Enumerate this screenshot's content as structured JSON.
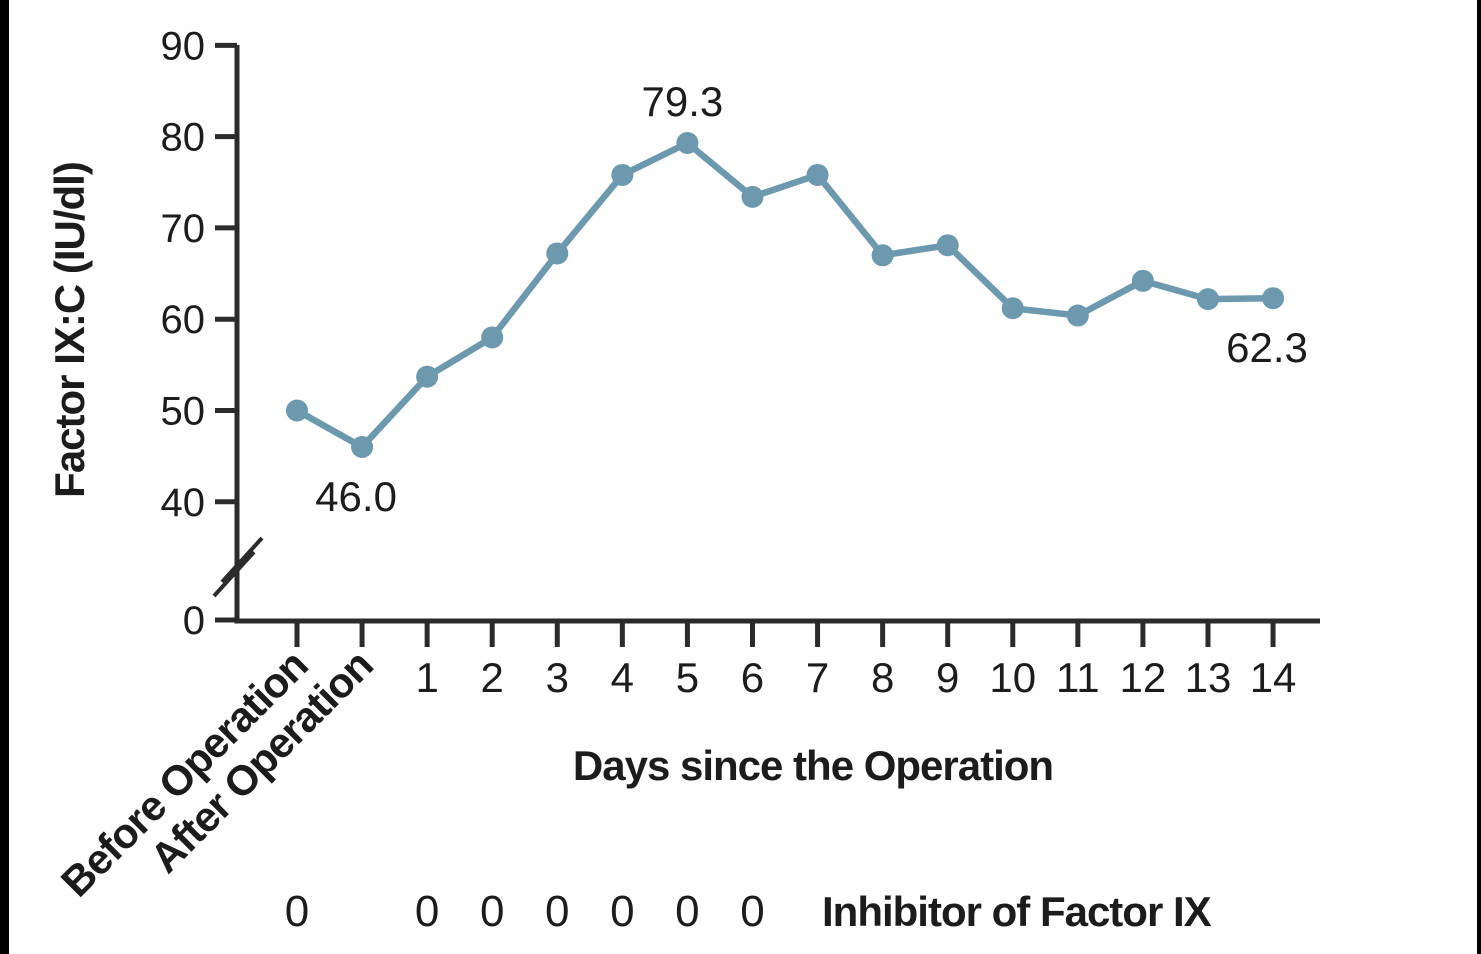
{
  "figure": {
    "background": "#ffffff",
    "edge_bar_color": "#000000"
  },
  "chart_data": {
    "type": "line",
    "title": "",
    "xlabel": "Days since the Operation",
    "ylabel": "Factor IX:C (IU/dl)",
    "categories": [
      "Before Operation",
      "After Operation",
      "1",
      "2",
      "3",
      "4",
      "5",
      "6",
      "7",
      "8",
      "9",
      "10",
      "11",
      "12",
      "13",
      "14"
    ],
    "series": [
      {
        "name": "Factor IX:C",
        "color": "#6c99ad",
        "values": [
          50.0,
          46.0,
          53.7,
          58.0,
          67.2,
          75.8,
          79.3,
          73.4,
          75.8,
          67.0,
          68.1,
          61.2,
          60.4,
          64.2,
          62.2,
          62.3
        ]
      }
    ],
    "y_ticks": [
      90,
      80,
      70,
      60,
      50,
      40,
      0
    ],
    "ylim": [
      0,
      90
    ],
    "axis_break_between": [
      0,
      40
    ],
    "grid": false,
    "legend": false,
    "marker": "circle",
    "annotations": [
      {
        "category": "After Operation",
        "text": "46.0",
        "position": "below"
      },
      {
        "category": "5",
        "text": "79.3",
        "position": "above"
      },
      {
        "category": "14",
        "text": "62.3",
        "position": "below"
      }
    ],
    "inhibitor_row": {
      "label": "Inhibitor of Factor IX",
      "value": "0",
      "categories_with_value": [
        "Before Operation",
        "1",
        "2",
        "3",
        "4",
        "5",
        "6"
      ]
    },
    "text_color": "#1c1c1c",
    "axis_color": "#2b2b2b"
  }
}
